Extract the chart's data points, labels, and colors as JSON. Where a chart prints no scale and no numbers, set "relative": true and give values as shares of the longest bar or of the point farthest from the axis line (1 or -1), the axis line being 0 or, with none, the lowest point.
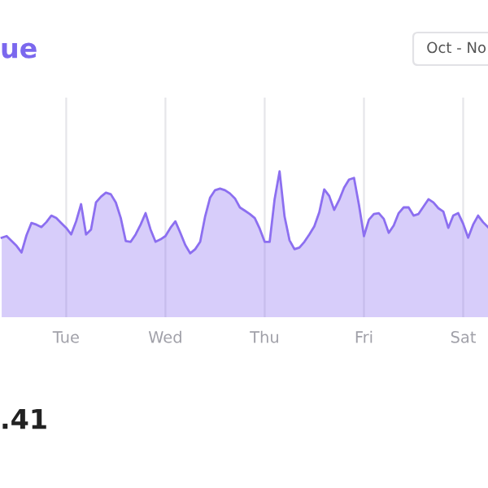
{
  "chart_data": {
    "type": "area",
    "title": "ue",
    "relative": true,
    "color": "#8c6ff0",
    "grid": "x",
    "categories": [
      null,
      null,
      null,
      null,
      null,
      null,
      null,
      null,
      null,
      null,
      null,
      null,
      null,
      "Tue",
      null,
      null,
      null,
      null,
      null,
      null,
      null,
      null,
      null,
      null,
      null,
      null,
      null,
      null,
      null,
      null,
      null,
      null,
      null,
      "Wed",
      null,
      null,
      null,
      null,
      null,
      null,
      null,
      null,
      null,
      null,
      null,
      null,
      null,
      null,
      null,
      null,
      null,
      null,
      null,
      "Thu",
      null,
      null,
      null,
      null,
      null,
      null,
      null,
      null,
      null,
      null,
      null,
      null,
      null,
      null,
      null,
      null,
      null,
      null,
      null,
      "Fri",
      null,
      null,
      null,
      null,
      null,
      null,
      null,
      null,
      null,
      null,
      null,
      null,
      null,
      null,
      null,
      null,
      null,
      null,
      null,
      "Sat",
      null,
      null,
      null,
      null,
      null
    ],
    "values": [
      0.19,
      0.21,
      0.15,
      0.09,
      0.01,
      0.22,
      0.37,
      0.35,
      0.32,
      0.38,
      0.46,
      0.43,
      0.37,
      0.31,
      0.23,
      0.39,
      0.6,
      0.23,
      0.29,
      0.62,
      0.69,
      0.74,
      0.72,
      0.62,
      0.43,
      0.15,
      0.14,
      0.23,
      0.35,
      0.49,
      0.29,
      0.14,
      0.17,
      0.21,
      0.31,
      0.39,
      0.25,
      0.1,
      0,
      0.05,
      0.14,
      0.45,
      0.68,
      0.77,
      0.79,
      0.77,
      0.73,
      0.67,
      0.56,
      0.52,
      0.48,
      0.43,
      0.3,
      0.14,
      0.14,
      0.66,
      1,
      0.45,
      0.16,
      0.05,
      0.07,
      0.14,
      0.23,
      0.33,
      0.5,
      0.78,
      0.7,
      0.53,
      0.65,
      0.8,
      0.9,
      0.92,
      0.59,
      0.21,
      0.41,
      0.48,
      0.49,
      0.42,
      0.25,
      0.34,
      0.49,
      0.56,
      0.56,
      0.46,
      0.48,
      0.57,
      0.66,
      0.62,
      0.55,
      0.51,
      0.31,
      0.46,
      0.49,
      0.36,
      0.19,
      0.35,
      0.46,
      0.38,
      0.32
    ],
    "annotations": [
      "Oct - No",
      ".41"
    ]
  }
}
